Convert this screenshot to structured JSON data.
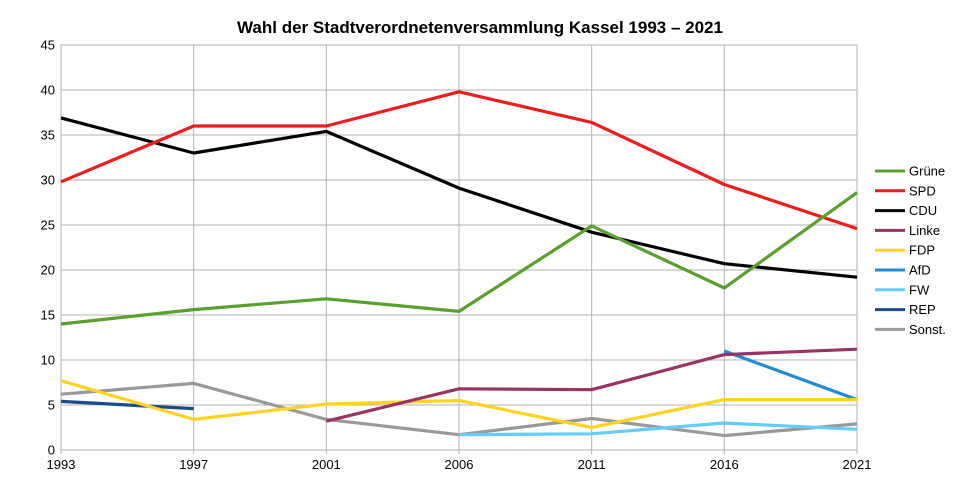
{
  "chart_data": {
    "type": "line",
    "title": "Wahl der Stadtverordnetenversammlung Kassel 1993 – 2021",
    "xlabel": "",
    "ylabel": "",
    "categories": [
      "1993",
      "1997",
      "2001",
      "2006",
      "2011",
      "2016",
      "2021"
    ],
    "ylim": [
      0,
      45
    ],
    "yticks": [
      0,
      5,
      10,
      15,
      20,
      25,
      30,
      35,
      40,
      45
    ],
    "grid": true,
    "legend_position": "right",
    "series": [
      {
        "name": "Grüne",
        "color": "#5aa02c",
        "values": [
          14.0,
          15.6,
          16.8,
          15.4,
          24.9,
          18.0,
          28.6
        ]
      },
      {
        "name": "SPD",
        "color": "#ee1c1c",
        "values": [
          29.8,
          36.0,
          36.0,
          39.8,
          36.4,
          29.5,
          24.6
        ]
      },
      {
        "name": "CDU",
        "color": "#000000",
        "values": [
          36.9,
          33.0,
          35.4,
          29.1,
          24.2,
          20.7,
          19.2
        ]
      },
      {
        "name": "Linke",
        "color": "#993366",
        "values": [
          null,
          null,
          3.2,
          6.8,
          6.7,
          10.6,
          11.2
        ]
      },
      {
        "name": "FDP",
        "color": "#ffd320",
        "values": [
          7.7,
          3.4,
          5.1,
          5.5,
          2.5,
          5.6,
          5.6
        ]
      },
      {
        "name": "AfD",
        "color": "#1f8dd6",
        "values": [
          null,
          null,
          null,
          null,
          null,
          11.0,
          5.6
        ]
      },
      {
        "name": "FW",
        "color": "#66ccff",
        "values": [
          null,
          null,
          null,
          1.7,
          1.8,
          3.0,
          2.3
        ]
      },
      {
        "name": "REP",
        "color": "#1c4b8c",
        "values": [
          5.4,
          4.6,
          null,
          null,
          null,
          null,
          null
        ]
      },
      {
        "name": "Sonst.",
        "color": "#999999",
        "values": [
          6.2,
          7.4,
          3.4,
          1.7,
          3.5,
          1.6,
          2.9
        ]
      }
    ]
  }
}
